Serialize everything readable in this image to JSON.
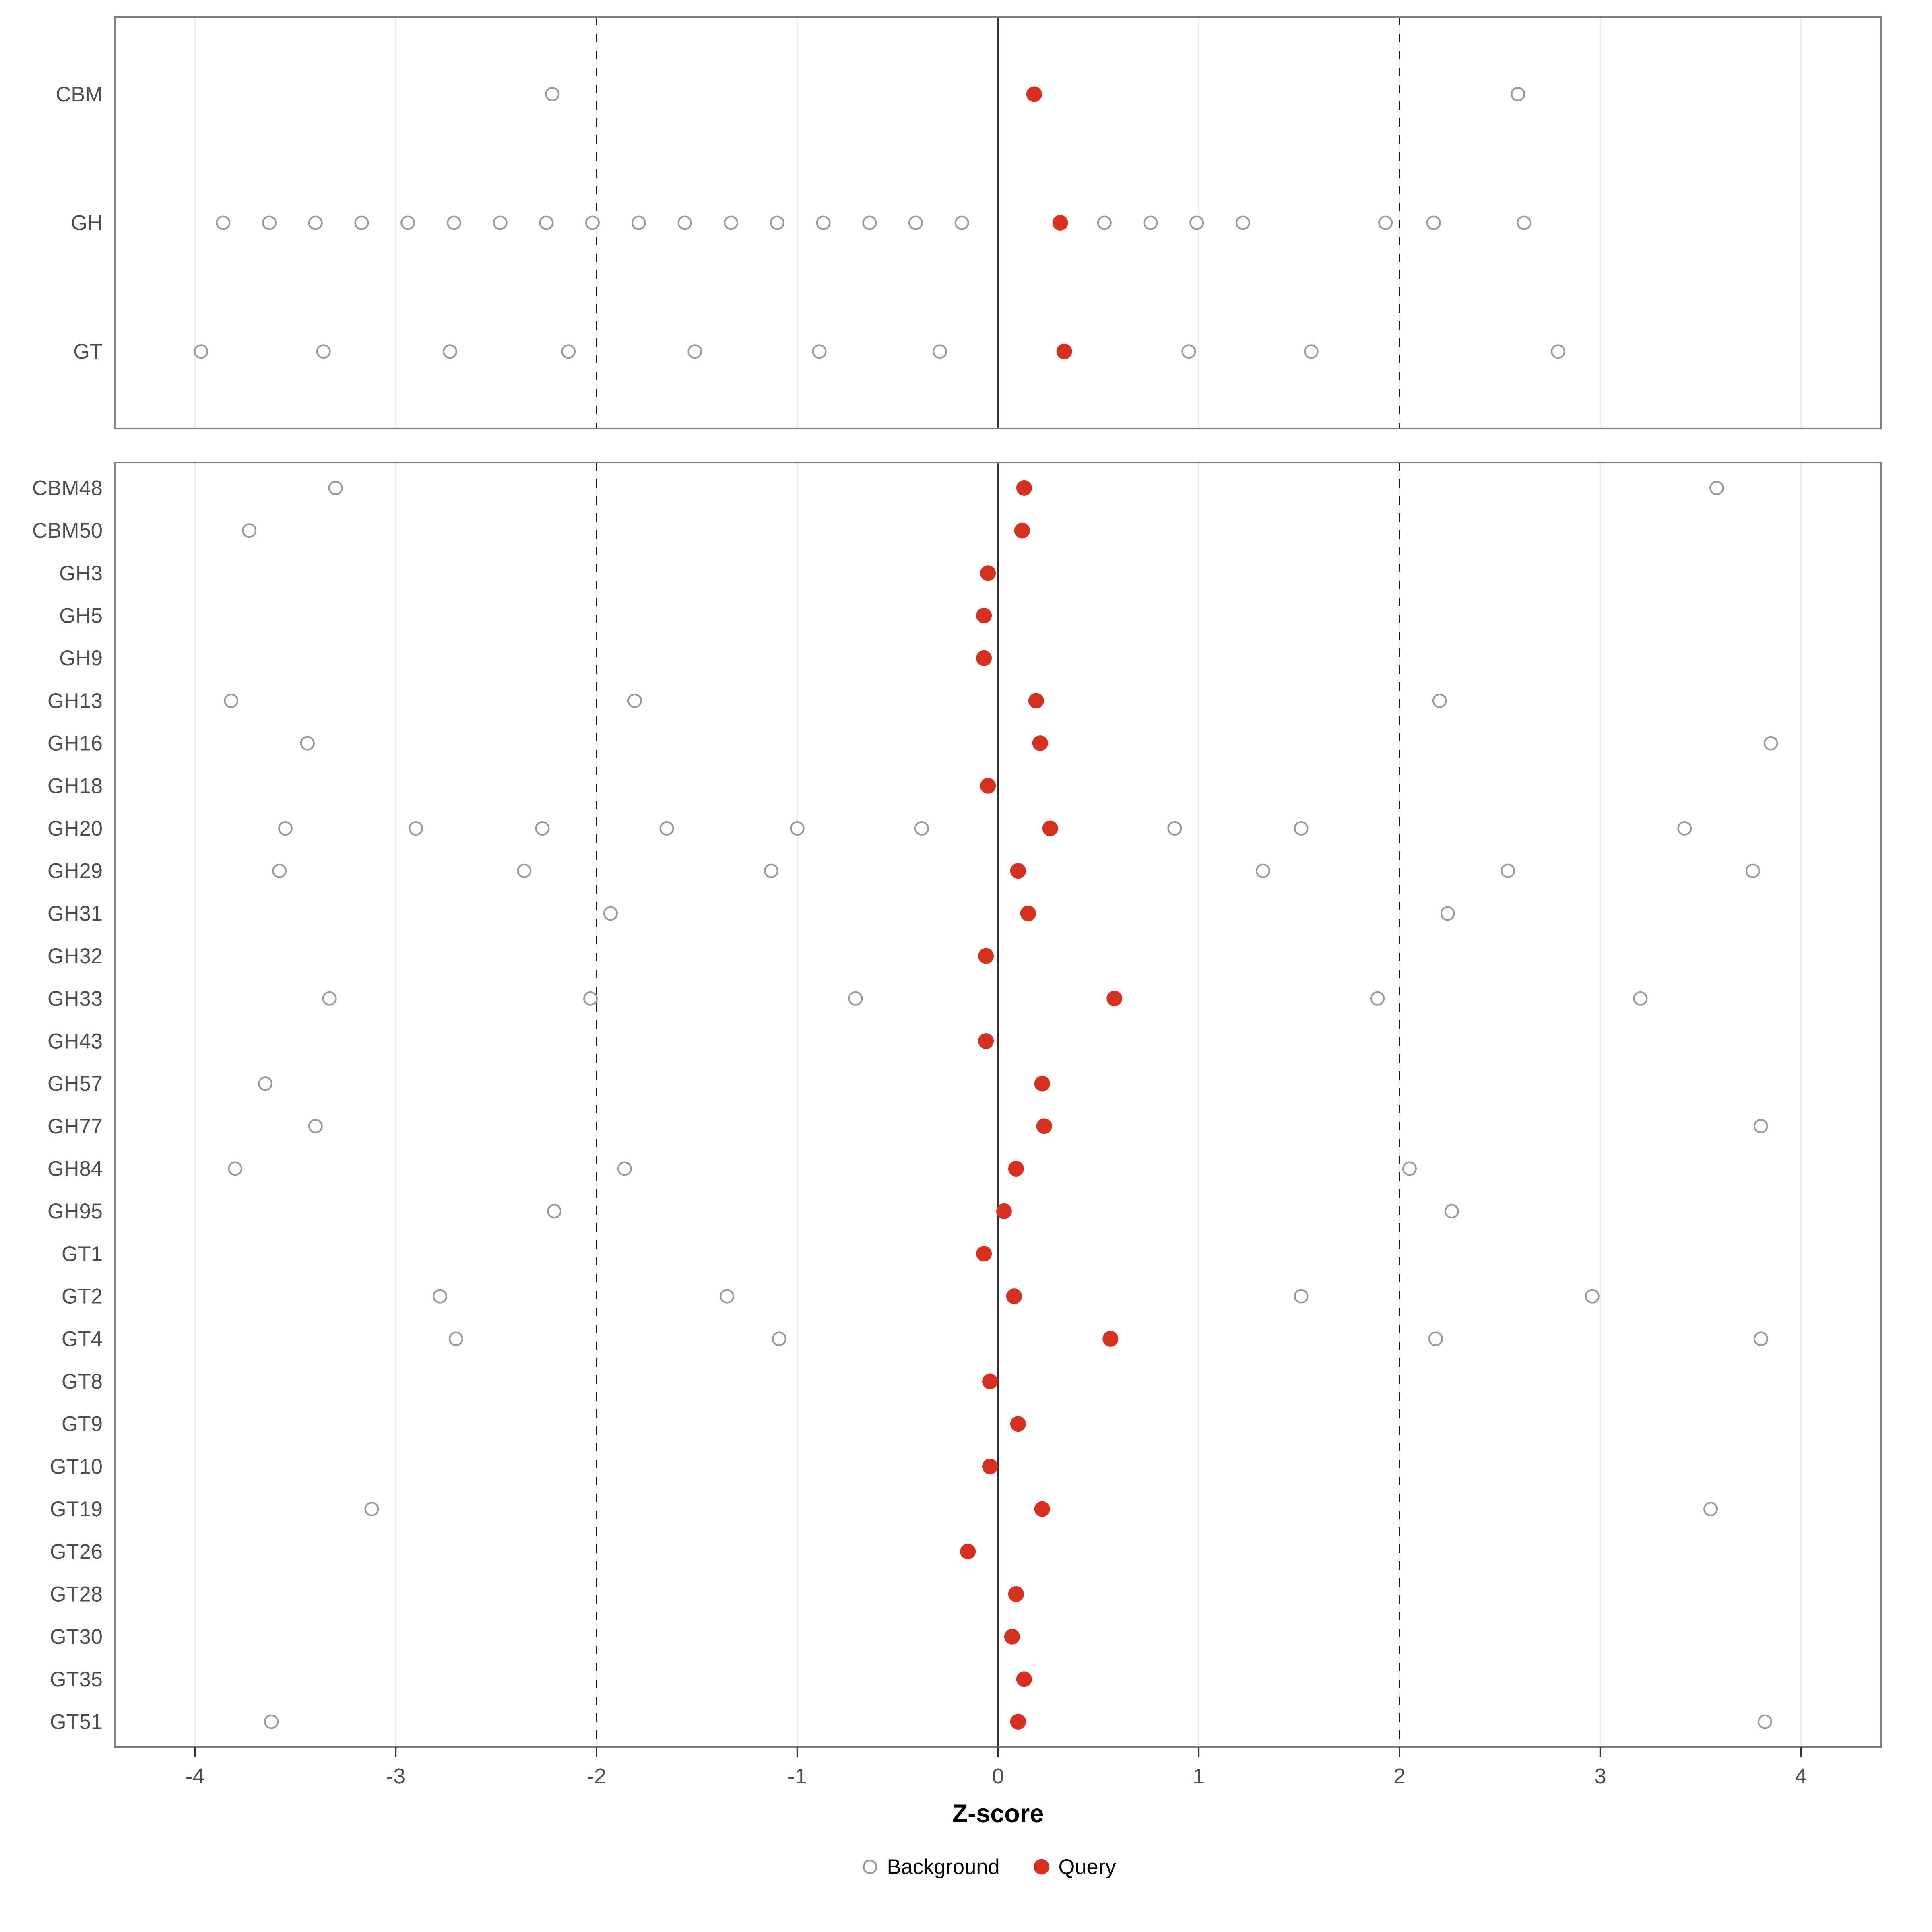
{
  "chart_data": {
    "type": "scatter",
    "title": "",
    "xlabel": "Z-score",
    "x_ticks": [
      -4,
      -3,
      -2,
      -1,
      0,
      1,
      2,
      3,
      4
    ],
    "xlim": [
      -4.4,
      4.4
    ],
    "grid": "on",
    "legend_position": "bottom",
    "reference_lines": {
      "solid": [
        0
      ],
      "dashed": [
        -2,
        2
      ]
    },
    "colors": {
      "query": "#d7301f",
      "background_fill": "#ffffff",
      "background_stroke": "#999999",
      "grid": "#ebebeb",
      "panel_border": "#7f7f7f",
      "axis_text": "#4d4d4d",
      "axis_line": "#333333"
    },
    "legend": {
      "items": [
        {
          "label": "Background",
          "marker": "open-circle"
        },
        {
          "label": "Query",
          "marker": "filled-circle"
        }
      ]
    },
    "panels": [
      {
        "name": "class-summary",
        "rows": [
          {
            "label": "CBM",
            "background": [
              -2.22,
              2.59
            ],
            "query": 0.18
          },
          {
            "label": "GH",
            "background": [
              -3.86,
              -3.63,
              -3.4,
              -3.17,
              -2.94,
              -2.71,
              -2.48,
              -2.25,
              -2.02,
              -1.79,
              -1.56,
              -1.33,
              -1.1,
              -0.87,
              -0.64,
              -0.41,
              -0.18,
              0.53,
              0.76,
              0.99,
              1.22,
              1.93,
              2.17,
              2.62
            ],
            "query": 0.31
          },
          {
            "label": "GT",
            "background": [
              -3.97,
              -3.36,
              -2.73,
              -2.14,
              -1.51,
              -0.89,
              -0.29,
              0.95,
              1.56,
              2.79
            ],
            "query": 0.33
          }
        ]
      },
      {
        "name": "family-detail",
        "rows": [
          {
            "label": "CBM48",
            "background": [
              -3.3,
              3.58
            ],
            "query": 0.13
          },
          {
            "label": "CBM50",
            "background": [
              -3.73
            ],
            "query": 0.12
          },
          {
            "label": "GH3",
            "background": [],
            "query": -0.05
          },
          {
            "label": "GH5",
            "background": [],
            "query": -0.07
          },
          {
            "label": "GH9",
            "background": [],
            "query": -0.07
          },
          {
            "label": "GH13",
            "background": [
              -3.82,
              -1.81,
              2.2
            ],
            "query": 0.19
          },
          {
            "label": "GH16",
            "background": [
              -3.44,
              3.85
            ],
            "query": 0.21
          },
          {
            "label": "GH18",
            "background": [],
            "query": -0.05
          },
          {
            "label": "GH20",
            "background": [
              -3.55,
              -2.9,
              -2.27,
              -1.65,
              -1.0,
              -0.38,
              0.88,
              1.51,
              3.42
            ],
            "query": 0.26
          },
          {
            "label": "GH29",
            "background": [
              -3.58,
              -2.36,
              -1.13,
              1.32,
              2.54,
              3.76
            ],
            "query": 0.1
          },
          {
            "label": "GH31",
            "background": [
              -1.93,
              2.24
            ],
            "query": 0.15
          },
          {
            "label": "GH32",
            "background": [],
            "query": -0.06
          },
          {
            "label": "GH33",
            "background": [
              -3.33,
              -2.03,
              -0.71,
              1.89,
              3.2
            ],
            "query": 0.58
          },
          {
            "label": "GH43",
            "background": [],
            "query": -0.06
          },
          {
            "label": "GH57",
            "background": [
              -3.65
            ],
            "query": 0.22
          },
          {
            "label": "GH77",
            "background": [
              -3.4,
              3.8
            ],
            "query": 0.23
          },
          {
            "label": "GH84",
            "background": [
              -3.8,
              -1.86,
              2.05
            ],
            "query": 0.09
          },
          {
            "label": "GH95",
            "background": [
              -2.21,
              2.26
            ],
            "query": 0.03
          },
          {
            "label": "GT1",
            "background": [],
            "query": -0.07
          },
          {
            "label": "GT2",
            "background": [
              -2.78,
              -1.35,
              1.51,
              2.96
            ],
            "query": 0.08
          },
          {
            "label": "GT4",
            "background": [
              -2.7,
              -1.09,
              2.18,
              3.8
            ],
            "query": 0.56
          },
          {
            "label": "GT8",
            "background": [],
            "query": -0.04
          },
          {
            "label": "GT9",
            "background": [],
            "query": 0.1
          },
          {
            "label": "GT10",
            "background": [],
            "query": -0.04
          },
          {
            "label": "GT19",
            "background": [
              -3.12,
              3.55
            ],
            "query": 0.22
          },
          {
            "label": "GT26",
            "background": [],
            "query": -0.15
          },
          {
            "label": "GT28",
            "background": [],
            "query": 0.09
          },
          {
            "label": "GT30",
            "background": [],
            "query": 0.07
          },
          {
            "label": "GT35",
            "background": [],
            "query": 0.13
          },
          {
            "label": "GT51",
            "background": [
              -3.62,
              3.82
            ],
            "query": 0.1
          }
        ]
      }
    ]
  }
}
